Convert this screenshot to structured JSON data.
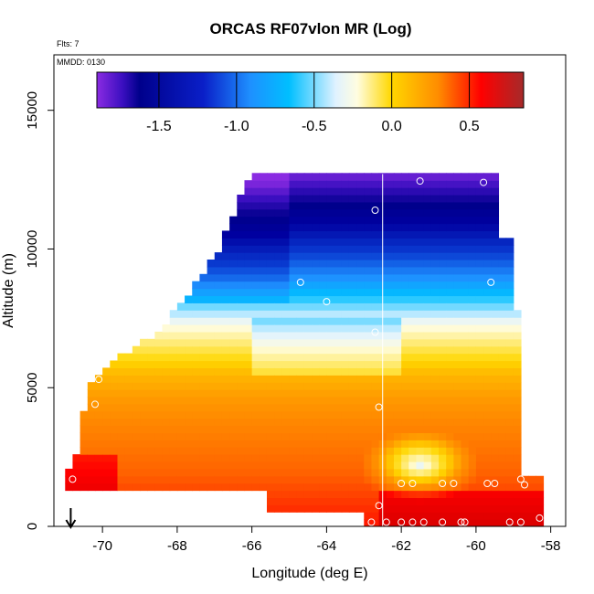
{
  "chart_data": {
    "type": "heatmap",
    "title": "ORCAS RF07vlon MR (Log)",
    "note_flts": "Flts: 7",
    "note_mmdd": "MMDD: 0130",
    "xlabel": "Longitude (deg E)",
    "ylabel": "Altitude (m)",
    "xlim": [
      -71.3,
      -57.6
    ],
    "ylim": [
      0,
      17000
    ],
    "x_ticks": [
      -70,
      -68,
      -66,
      -64,
      -62,
      -60,
      -58
    ],
    "x_tick_labels": [
      "-70",
      "-68",
      "-66",
      "-64",
      "-62",
      "-60",
      "-58"
    ],
    "y_ticks": [
      0,
      5000,
      10000,
      15000
    ],
    "y_tick_labels": [
      "0",
      "5000",
      "10000",
      "15000"
    ],
    "colorbar": {
      "range": [
        -1.9,
        0.85
      ],
      "ticks": [
        -1.5,
        -1.0,
        -0.5,
        0.0,
        0.5
      ],
      "tick_labels": [
        "-1.5",
        "-1.0",
        "-0.5",
        "0.0",
        "0.5"
      ]
    },
    "vertical_line_lon": -62.5,
    "arrow_lon": -70.85,
    "observation_points": [
      {
        "lon": -70.8,
        "alt": 1700
      },
      {
        "lon": -70.2,
        "alt": 4400
      },
      {
        "lon": -70.1,
        "alt": 5300
      },
      {
        "lon": -66.4,
        "alt": 12700
      },
      {
        "lon": -64.7,
        "alt": 8800
      },
      {
        "lon": -64.0,
        "alt": 8100
      },
      {
        "lon": -62.7,
        "alt": 11400
      },
      {
        "lon": -62.7,
        "alt": 7000
      },
      {
        "lon": -62.6,
        "alt": 4300
      },
      {
        "lon": -62.6,
        "alt": 750
      },
      {
        "lon": -62.8,
        "alt": 150
      },
      {
        "lon": -62.4,
        "alt": 150
      },
      {
        "lon": -62.0,
        "alt": 150
      },
      {
        "lon": -61.7,
        "alt": 150
      },
      {
        "lon": -61.4,
        "alt": 150
      },
      {
        "lon": -60.9,
        "alt": 150
      },
      {
        "lon": -60.4,
        "alt": 150
      },
      {
        "lon": -60.3,
        "alt": 150
      },
      {
        "lon": -59.1,
        "alt": 150
      },
      {
        "lon": -58.8,
        "alt": 150
      },
      {
        "lon": -58.3,
        "alt": 300
      },
      {
        "lon": -61.5,
        "alt": 12450
      },
      {
        "lon": -59.8,
        "alt": 12400
      },
      {
        "lon": -59.6,
        "alt": 8800
      },
      {
        "lon": -62.0,
        "alt": 1550
      },
      {
        "lon": -61.7,
        "alt": 1550
      },
      {
        "lon": -60.9,
        "alt": 1550
      },
      {
        "lon": -60.6,
        "alt": 1550
      },
      {
        "lon": -59.7,
        "alt": 1550
      },
      {
        "lon": -59.5,
        "alt": 1550
      },
      {
        "lon": -58.8,
        "alt": 1700
      },
      {
        "lon": -58.7,
        "alt": 1500
      }
    ]
  }
}
